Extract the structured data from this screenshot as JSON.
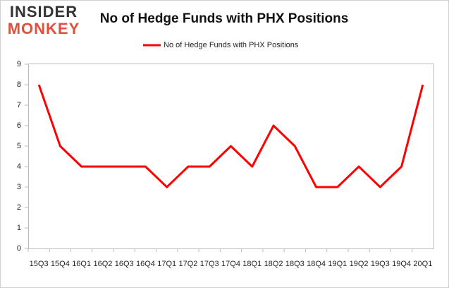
{
  "logo": {
    "line1": "INSIDER",
    "line2": "MONKEY"
  },
  "chart_data": {
    "type": "line",
    "title": "No of Hedge Funds with PHX Positions",
    "categories": [
      "15Q3",
      "15Q4",
      "16Q1",
      "16Q2",
      "16Q3",
      "16Q4",
      "17Q1",
      "17Q2",
      "17Q3",
      "17Q4",
      "18Q1",
      "18Q2",
      "18Q3",
      "18Q4",
      "19Q1",
      "19Q2",
      "19Q3",
      "19Q4",
      "20Q1"
    ],
    "series": [
      {
        "name": "No of Hedge Funds with PHX Positions",
        "color": "#ff0000",
        "values": [
          8,
          5,
          4,
          4,
          4,
          4,
          3,
          4,
          4,
          5,
          4,
          6,
          5,
          3,
          3,
          4,
          3,
          4,
          8
        ]
      }
    ],
    "ylim": [
      0,
      9
    ],
    "yticks": [
      0,
      1,
      2,
      3,
      4,
      5,
      6,
      7,
      8,
      9
    ],
    "grid": false,
    "legend": "top"
  }
}
